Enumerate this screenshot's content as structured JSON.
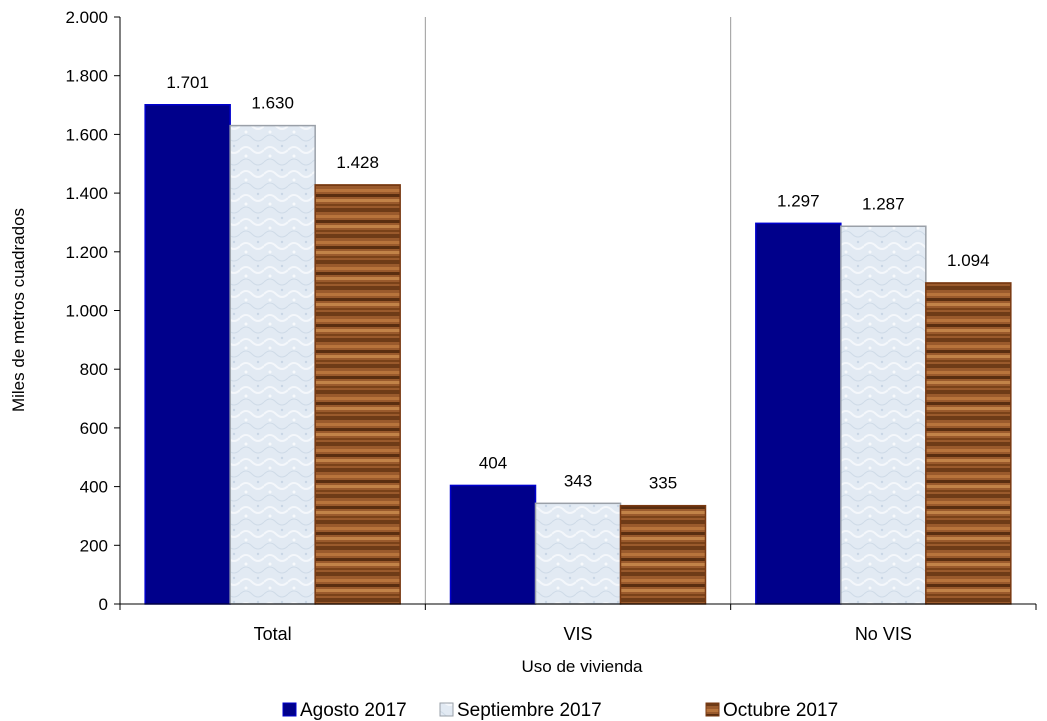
{
  "chart_data": {
    "type": "bar",
    "categories": [
      "Total",
      "VIS",
      "No VIS"
    ],
    "series": [
      {
        "name": "Agosto 2017",
        "values": [
          1701,
          404,
          1297
        ],
        "labels": [
          "1.701",
          "404",
          "1.297"
        ],
        "color": "#00008b"
      },
      {
        "name": "Septiembre 2017",
        "values": [
          1630,
          343,
          1287
        ],
        "labels": [
          "1.630",
          "343",
          "1.287"
        ],
        "color": "#dfe8f2"
      },
      {
        "name": "Octubre 2017",
        "values": [
          1428,
          335,
          1094
        ],
        "labels": [
          "1.428",
          "335",
          "1.094"
        ],
        "color": "#8b4513"
      }
    ],
    "xlabel": "Uso de vivienda",
    "ylabel": "Miles de metros cuadrados",
    "ylim": [
      0,
      2000
    ],
    "yticks": [
      0,
      200,
      400,
      600,
      800,
      1000,
      1200,
      1400,
      1600,
      1800,
      2000
    ],
    "ytick_labels": [
      "0",
      "200",
      "400",
      "600",
      "800",
      "1.000",
      "1.200",
      "1.400",
      "1.600",
      "1.800",
      "2.000"
    ],
    "legend_position": "bottom",
    "grid": false
  }
}
